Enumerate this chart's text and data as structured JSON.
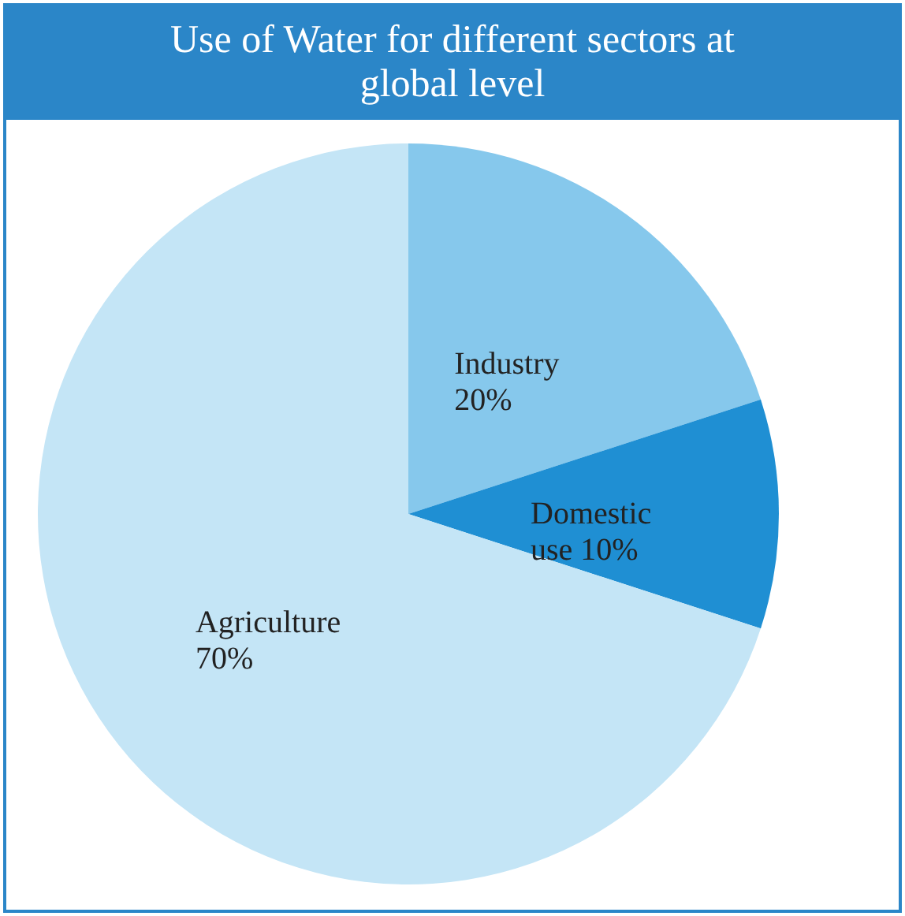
{
  "chart_data": {
    "type": "pie",
    "title": "Use of Water for different sectors at global level",
    "categories": [
      "Industry",
      "Domestic use",
      "Agriculture"
    ],
    "values": [
      20,
      10,
      70
    ],
    "value_labels": [
      "20%",
      "10%",
      "70%"
    ],
    "colors": [
      "#86c8ec",
      "#1f8fd3",
      "#c4e5f6"
    ],
    "legend": false
  }
}
